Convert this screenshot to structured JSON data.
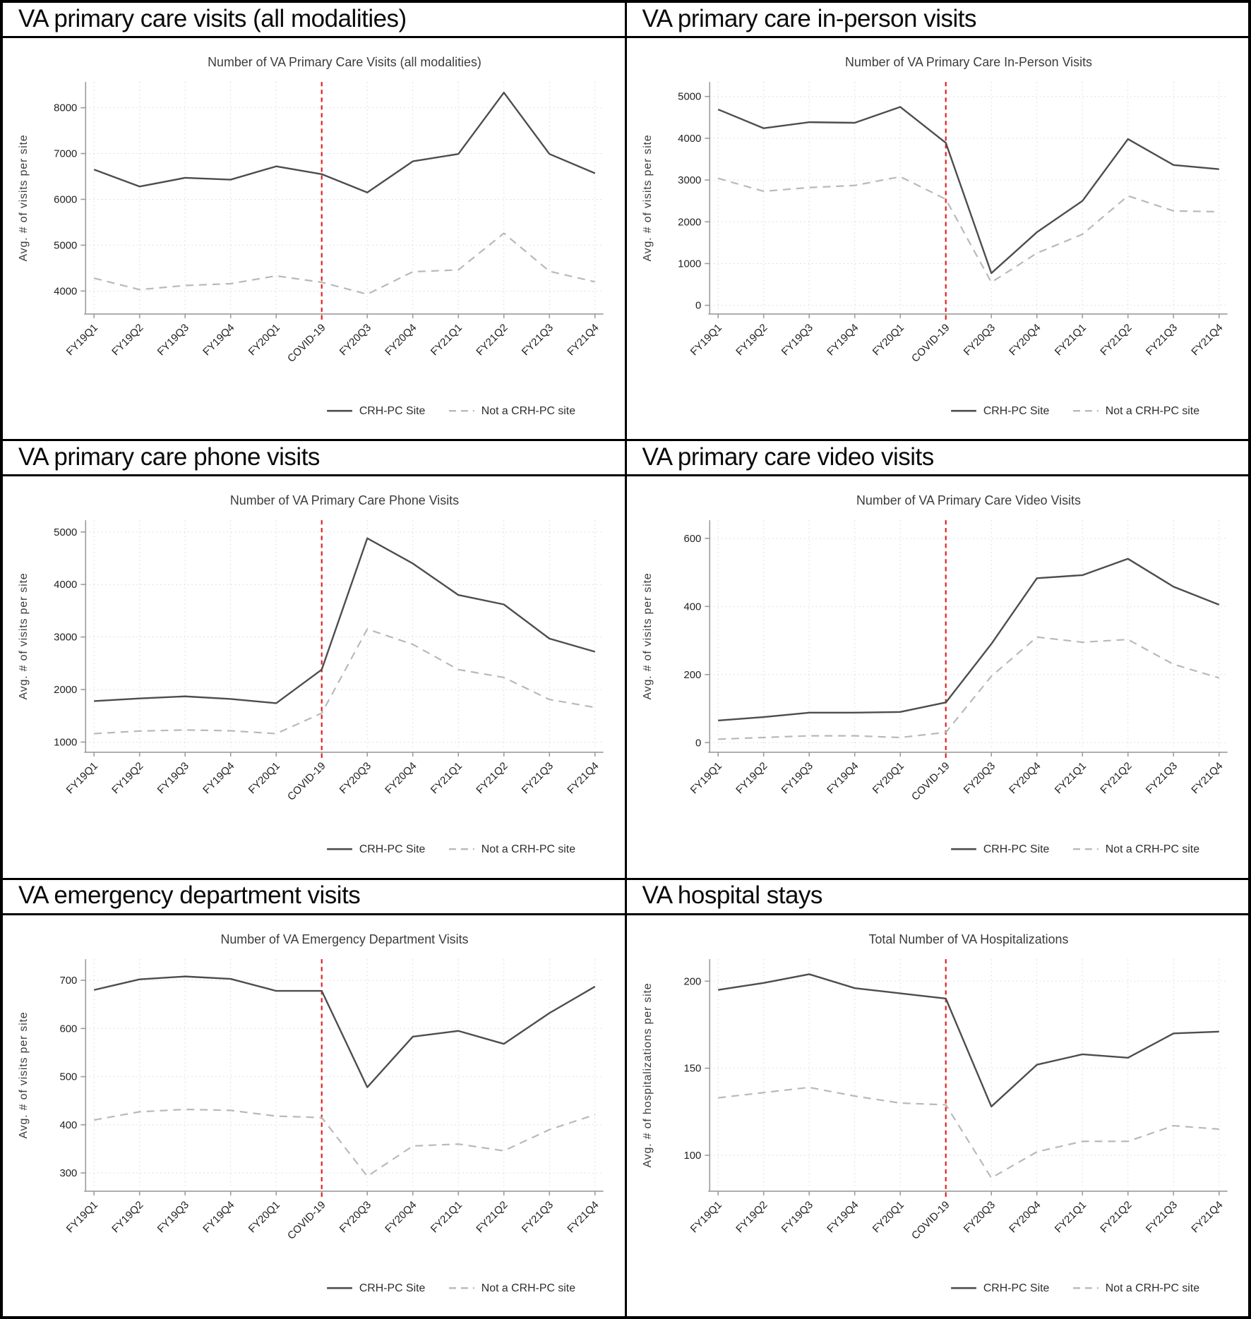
{
  "style": {
    "crh_line_color": "#4d4d4d",
    "not_crh_line_color": "#b9b9b9",
    "covid_line_color": "#e02222",
    "grid_color": "#d9d9d9",
    "axis_color": "#9c9c9c",
    "tick_text_color": "#1f1f1f",
    "title_text_color": "#3c3c3c",
    "legend_text_color": "#2e2e2e",
    "background": "#ffffff"
  },
  "legend": {
    "series1_label": "CRH-PC Site",
    "series2_label": "Not a CRH-PC site"
  },
  "chart_data": [
    {
      "panel_header": "VA primary care visits (all modalities)",
      "type": "line",
      "title": "Number of VA Primary Care Visits (all modalities)",
      "ylabel": "Avg. # of visits per site",
      "xlabel": "",
      "categories": [
        "FY19Q1",
        "FY19Q2",
        "FY19Q3",
        "FY19Q4",
        "FY20Q1",
        "COVID-19",
        "FY20Q3",
        "FY20Q4",
        "FY21Q1",
        "FY21Q2",
        "FY21Q3",
        "FY21Q4"
      ],
      "vline_category": "COVID-19",
      "yticks": [
        4000,
        5000,
        6000,
        7000,
        8000
      ],
      "ylim": [
        3560,
        8500
      ],
      "grid": true,
      "legend_position": "bottom",
      "series": [
        {
          "name": "CRH-PC Site",
          "line_style": "solid",
          "values": [
            6650,
            6280,
            6470,
            6430,
            6720,
            6550,
            6150,
            6830,
            6990,
            8330,
            6990,
            6570
          ]
        },
        {
          "name": "Not a CRH-PC site",
          "line_style": "dashed",
          "values": [
            4280,
            4030,
            4120,
            4160,
            4330,
            4190,
            3930,
            4420,
            4460,
            5260,
            4430,
            4200
          ]
        }
      ]
    },
    {
      "panel_header": "VA primary care in-person visits",
      "type": "line",
      "title": "Number of VA Primary Care In-Person Visits",
      "ylabel": "Avg. # of visits per site",
      "xlabel": "",
      "categories": [
        "FY19Q1",
        "FY19Q2",
        "FY19Q3",
        "FY19Q4",
        "FY20Q1",
        "COVID-19",
        "FY20Q3",
        "FY20Q4",
        "FY21Q1",
        "FY21Q2",
        "FY21Q3",
        "FY21Q4"
      ],
      "vline_category": "COVID-19",
      "yticks": [
        0,
        1000,
        2000,
        3000,
        4000,
        5000
      ],
      "ylim": [
        -140,
        5280
      ],
      "grid": true,
      "legend_position": "bottom",
      "series": [
        {
          "name": "CRH-PC Site",
          "line_style": "solid",
          "values": [
            4690,
            4240,
            4385,
            4370,
            4750,
            3890,
            770,
            1750,
            2500,
            3980,
            3360,
            3260
          ]
        },
        {
          "name": "Not a CRH-PC site",
          "line_style": "dashed",
          "values": [
            3040,
            2730,
            2820,
            2870,
            3080,
            2540,
            550,
            1250,
            1700,
            2620,
            2260,
            2240
          ]
        }
      ]
    },
    {
      "panel_header": "VA primary care phone visits",
      "type": "line",
      "title": "Number of VA Primary Care Phone Visits",
      "ylabel": "Avg. # of visits per site",
      "xlabel": "",
      "categories": [
        "FY19Q1",
        "FY19Q2",
        "FY19Q3",
        "FY19Q4",
        "FY20Q1",
        "COVID-19",
        "FY20Q3",
        "FY20Q4",
        "FY21Q1",
        "FY21Q2",
        "FY21Q3",
        "FY21Q4"
      ],
      "vline_category": "COVID-19",
      "yticks": [
        1000,
        2000,
        3000,
        4000,
        5000
      ],
      "ylim": [
        860,
        5170
      ],
      "grid": true,
      "legend_position": "bottom",
      "series": [
        {
          "name": "CRH-PC Site",
          "line_style": "solid",
          "values": [
            1780,
            1830,
            1870,
            1820,
            1740,
            2380,
            4880,
            4400,
            3800,
            3620,
            2970,
            2720
          ]
        },
        {
          "name": "Not a CRH-PC site",
          "line_style": "dashed",
          "values": [
            1160,
            1210,
            1230,
            1215,
            1160,
            1550,
            3150,
            2860,
            2380,
            2230,
            1810,
            1660
          ]
        }
      ]
    },
    {
      "panel_header": "VA primary care video visits",
      "type": "line",
      "title": "Number of VA Primary Care Video Visits",
      "ylabel": "Avg. # of visits per site",
      "xlabel": "",
      "categories": [
        "FY19Q1",
        "FY19Q2",
        "FY19Q3",
        "FY19Q4",
        "FY20Q1",
        "COVID-19",
        "FY20Q3",
        "FY20Q4",
        "FY21Q1",
        "FY21Q2",
        "FY21Q3",
        "FY21Q4"
      ],
      "vline_category": "COVID-19",
      "yticks": [
        0,
        200,
        400,
        600
      ],
      "ylim": [
        -20,
        645
      ],
      "grid": true,
      "legend_position": "bottom",
      "series": [
        {
          "name": "CRH-PC Site",
          "line_style": "solid",
          "values": [
            65,
            75,
            88,
            88,
            90,
            118,
            290,
            483,
            492,
            540,
            458,
            405
          ]
        },
        {
          "name": "Not a CRH-PC site",
          "line_style": "dashed",
          "values": [
            10,
            15,
            20,
            20,
            15,
            30,
            195,
            310,
            295,
            303,
            230,
            190
          ]
        }
      ]
    },
    {
      "panel_header": "VA emergency department visits",
      "type": "line",
      "title": "Number of VA Emergency Department Visits",
      "ylabel": "Avg. # of visits per site",
      "xlabel": "",
      "categories": [
        "FY19Q1",
        "FY19Q2",
        "FY19Q3",
        "FY19Q4",
        "FY20Q1",
        "COVID-19",
        "FY20Q3",
        "FY20Q4",
        "FY21Q1",
        "FY21Q2",
        "FY21Q3",
        "FY21Q4"
      ],
      "vline_category": "COVID-19",
      "yticks": [
        300,
        400,
        500,
        600,
        700
      ],
      "ylim": [
        268,
        738
      ],
      "grid": true,
      "legend_position": "bottom",
      "series": [
        {
          "name": "CRH-PC Site",
          "line_style": "solid",
          "values": [
            680,
            702,
            708,
            703,
            678,
            678,
            478,
            583,
            595,
            568,
            632,
            687
          ]
        },
        {
          "name": "Not a CRH-PC site",
          "line_style": "dashed",
          "values": [
            410,
            427,
            432,
            430,
            418,
            415,
            293,
            356,
            360,
            346,
            390,
            421
          ]
        }
      ]
    },
    {
      "panel_header": "VA hospital stays",
      "type": "line",
      "title": "Total Number of VA Hospitalizations",
      "ylabel": "Avg. # of hospitalizations per site",
      "xlabel": "",
      "categories": [
        "FY19Q1",
        "FY19Q2",
        "FY19Q3",
        "FY19Q4",
        "FY20Q1",
        "COVID-19",
        "FY20Q3",
        "FY20Q4",
        "FY21Q1",
        "FY21Q2",
        "FY21Q3",
        "FY21Q4"
      ],
      "vline_category": "COVID-19",
      "yticks": [
        100,
        150,
        200
      ],
      "ylim": [
        81,
        211
      ],
      "grid": true,
      "legend_position": "bottom",
      "series": [
        {
          "name": "CRH-PC Site",
          "line_style": "solid",
          "values": [
            195,
            199,
            204,
            196,
            193,
            190,
            128,
            152,
            158,
            156,
            170,
            171
          ]
        },
        {
          "name": "Not a CRH-PC site",
          "line_style": "dashed",
          "values": [
            133,
            136,
            139,
            134,
            130,
            129,
            87,
            102,
            108,
            108,
            117,
            115
          ]
        }
      ]
    }
  ]
}
